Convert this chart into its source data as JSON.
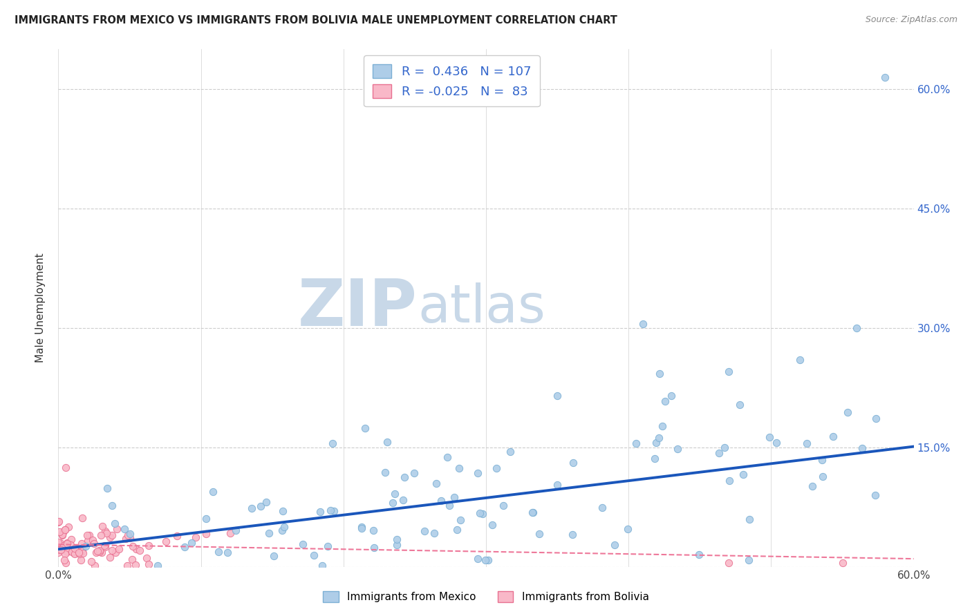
{
  "title": "IMMIGRANTS FROM MEXICO VS IMMIGRANTS FROM BOLIVIA MALE UNEMPLOYMENT CORRELATION CHART",
  "source": "Source: ZipAtlas.com",
  "ylabel": "Male Unemployment",
  "xlim": [
    0.0,
    0.6
  ],
  "ylim": [
    0.0,
    0.65
  ],
  "x_tick_positions": [
    0.0,
    0.1,
    0.2,
    0.3,
    0.4,
    0.5,
    0.6
  ],
  "x_tick_labels": [
    "0.0%",
    "",
    "",
    "",
    "",
    "",
    "60.0%"
  ],
  "y_tick_positions": [
    0.0,
    0.15,
    0.3,
    0.45,
    0.6
  ],
  "y_tick_labels_right": [
    "",
    "15.0%",
    "30.0%",
    "45.0%",
    "60.0%"
  ],
  "mexico_color": "#aecde8",
  "mexico_edge_color": "#7bafd4",
  "bolivia_color": "#f9b8c8",
  "bolivia_edge_color": "#e87090",
  "mexico_R": 0.436,
  "mexico_N": 107,
  "bolivia_R": -0.025,
  "bolivia_N": 83,
  "trend_mexico_color": "#1a56bb",
  "trend_bolivia_color": "#ee7799",
  "trend_mexico_intercept": 0.022,
  "trend_mexico_slope": 0.215,
  "trend_bolivia_intercept": 0.028,
  "trend_bolivia_slope": -0.03,
  "watermark_zip": "ZIP",
  "watermark_atlas": "atlas",
  "watermark_color": "#c8d8e8",
  "scatter_seed": 17
}
